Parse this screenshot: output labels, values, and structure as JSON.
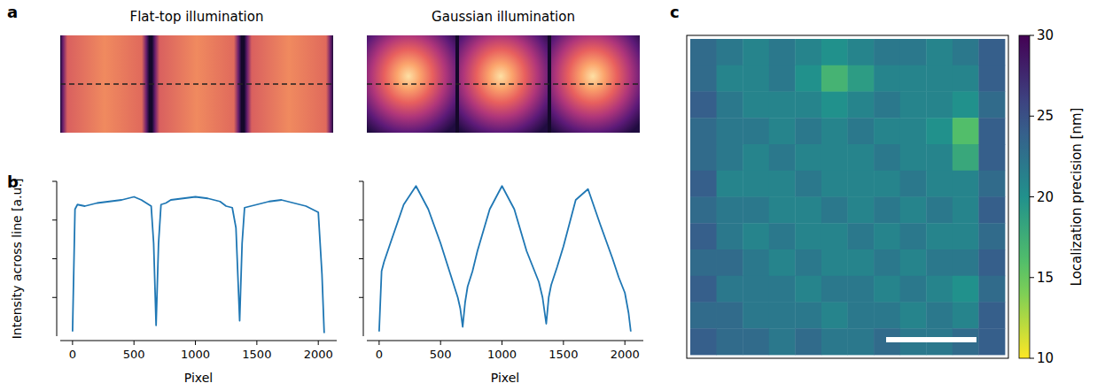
{
  "panel_labels": [
    "a",
    "b",
    "c"
  ],
  "images": [
    {
      "title": "Flat-top illumination"
    },
    {
      "title": "Gaussian illumination"
    }
  ],
  "chart_data": [
    {
      "type": "line",
      "x_label": "Pixel",
      "y_label": "Intensity across line [a.u.]",
      "xlim": [
        -100,
        2150
      ],
      "xticks": [
        0,
        500,
        1000,
        1500,
        2000
      ],
      "ylim": [
        0,
        1
      ],
      "yticks": [
        0.25,
        0.5,
        0.75,
        1
      ],
      "tick_labels": "x",
      "grid": false,
      "x": [
        0,
        20,
        40,
        100,
        200,
        300,
        400,
        500,
        560,
        600,
        640,
        660,
        680,
        700,
        720,
        760,
        800,
        900,
        1000,
        1100,
        1200,
        1250,
        1300,
        1330,
        1360,
        1380,
        1400,
        1450,
        1500,
        1600,
        1700,
        1800,
        1900,
        1950,
        2000,
        2030,
        2048
      ],
      "series": [
        {
          "name": "Flat-top illumination",
          "color": "#1f77b4",
          "values": [
            0.03,
            0.82,
            0.85,
            0.84,
            0.86,
            0.87,
            0.88,
            0.9,
            0.88,
            0.86,
            0.84,
            0.6,
            0.07,
            0.6,
            0.85,
            0.86,
            0.88,
            0.89,
            0.9,
            0.89,
            0.87,
            0.84,
            0.83,
            0.7,
            0.1,
            0.6,
            0.83,
            0.84,
            0.85,
            0.87,
            0.88,
            0.86,
            0.84,
            0.82,
            0.8,
            0.4,
            0.02
          ]
        }
      ]
    },
    {
      "type": "line",
      "x_label": "Pixel",
      "xlim": [
        -100,
        2150
      ],
      "xticks": [
        0,
        500,
        1000,
        1500,
        2000
      ],
      "ylim": [
        0,
        1
      ],
      "yticks": [
        0.25,
        0.5,
        0.75,
        1
      ],
      "tick_labels": "x",
      "grid": false,
      "x": [
        0,
        20,
        40,
        100,
        200,
        300,
        400,
        500,
        560,
        600,
        640,
        660,
        680,
        700,
        720,
        760,
        800,
        900,
        1000,
        1100,
        1200,
        1250,
        1300,
        1330,
        1360,
        1380,
        1400,
        1450,
        1500,
        1600,
        1700,
        1800,
        1900,
        1950,
        2000,
        2030,
        2048
      ],
      "series": [
        {
          "name": "Gaussian illumination",
          "color": "#1f77b4",
          "values": [
            0.03,
            0.42,
            0.48,
            0.62,
            0.85,
            0.97,
            0.82,
            0.6,
            0.45,
            0.35,
            0.25,
            0.18,
            0.06,
            0.22,
            0.32,
            0.42,
            0.55,
            0.82,
            0.97,
            0.82,
            0.55,
            0.45,
            0.35,
            0.25,
            0.08,
            0.25,
            0.33,
            0.45,
            0.58,
            0.88,
            0.95,
            0.72,
            0.5,
            0.38,
            0.28,
            0.15,
            0.03
          ]
        }
      ]
    },
    {
      "type": "heatmap",
      "tick_labels": false,
      "cells": [
        [
          23,
          22,
          21,
          22,
          21,
          20,
          21,
          22,
          22,
          21,
          22,
          24
        ],
        [
          23,
          21,
          21,
          22,
          20,
          17,
          19,
          21,
          21,
          21,
          21,
          24
        ],
        [
          24,
          22,
          21,
          21,
          21,
          20,
          21,
          22,
          21,
          21,
          20,
          23
        ],
        [
          23,
          22,
          22,
          21,
          22,
          21,
          22,
          21,
          21,
          20,
          16,
          24
        ],
        [
          23,
          22,
          21,
          22,
          21,
          21,
          21,
          22,
          21,
          21,
          18,
          24
        ],
        [
          24,
          21,
          21,
          21,
          22,
          21,
          21,
          21,
          22,
          21,
          21,
          23
        ],
        [
          23,
          22,
          22,
          21,
          21,
          22,
          21,
          22,
          21,
          22,
          21,
          24
        ],
        [
          24,
          22,
          21,
          22,
          21,
          21,
          22,
          21,
          22,
          21,
          21,
          23
        ],
        [
          23,
          23,
          22,
          21,
          22,
          21,
          21,
          22,
          21,
          22,
          22,
          24
        ],
        [
          24,
          22,
          22,
          22,
          21,
          22,
          22,
          21,
          22,
          21,
          20,
          23
        ],
        [
          23,
          23,
          22,
          22,
          22,
          21,
          22,
          22,
          21,
          22,
          21,
          24
        ],
        [
          24,
          23,
          23,
          22,
          23,
          22,
          22,
          23,
          22,
          22,
          23,
          24
        ]
      ],
      "colorbar": {
        "label": "Localization precision [nm]",
        "range": [
          10,
          30
        ],
        "ticks": [
          10,
          15,
          20,
          25,
          30
        ]
      }
    }
  ]
}
